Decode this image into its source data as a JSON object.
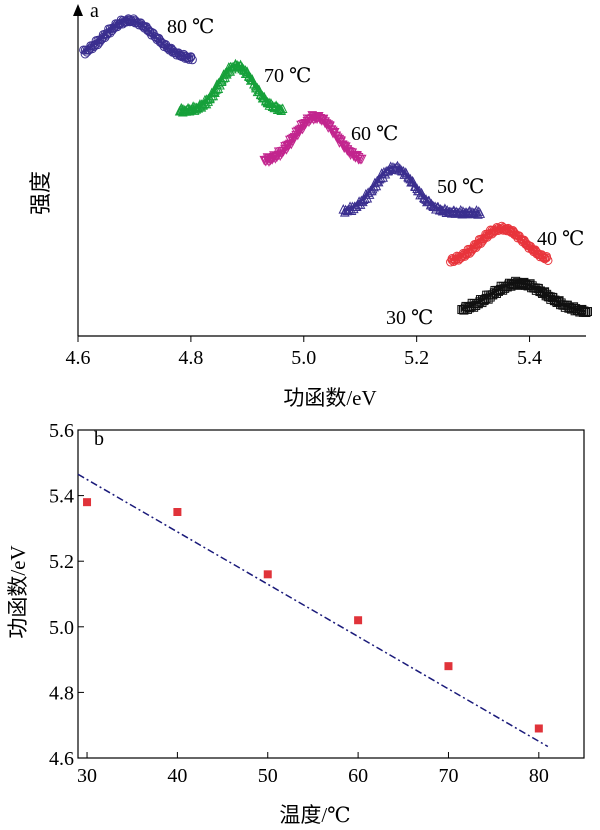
{
  "chart_data": [
    {
      "panel": "a",
      "type": "line",
      "title": "",
      "xlabel": "功函数/eV",
      "ylabel": "强度",
      "xlim": [
        4.6,
        5.5
      ],
      "xticks": [
        4.6,
        4.8,
        5.0,
        5.2,
        5.4
      ],
      "xtick_labels": [
        "4.6",
        "4.8",
        "5.0",
        "5.2",
        "5.4"
      ],
      "y_ticks_shown": false,
      "series": [
        {
          "name": "80 ℃",
          "color": "#3b2f8f",
          "marker": "circle",
          "peak_x": 4.69,
          "x_range": [
            4.61,
            4.8
          ],
          "offset_level": 6
        },
        {
          "name": "70 ℃",
          "color": "#16a03a",
          "marker": "triangle-up",
          "peak_x": 4.88,
          "x_range": [
            4.78,
            4.96
          ],
          "offset_level": 5
        },
        {
          "name": "60 ℃",
          "color": "#c2258e",
          "marker": "triangle-down",
          "peak_x": 5.02,
          "x_range": [
            4.93,
            5.1
          ],
          "offset_level": 4
        },
        {
          "name": "50 ℃",
          "color": "#3b2f8f",
          "marker": "triangle-up",
          "peak_x": 5.16,
          "x_range": [
            5.07,
            5.31
          ],
          "offset_level": 3
        },
        {
          "name": "40 ℃",
          "color": "#e8353c",
          "marker": "circle",
          "peak_x": 5.35,
          "x_range": [
            5.26,
            5.43
          ],
          "offset_level": 2
        },
        {
          "name": "30 ℃",
          "color": "#111111",
          "marker": "square",
          "peak_x": 5.38,
          "x_range": [
            5.28,
            5.5
          ],
          "offset_level": 1
        }
      ]
    },
    {
      "panel": "b",
      "type": "scatter",
      "title": "",
      "xlabel": "温度/℃",
      "ylabel": "功函数/eV",
      "xlim": [
        29,
        85
      ],
      "ylim": [
        4.6,
        5.6
      ],
      "xticks": [
        30,
        40,
        50,
        60,
        70,
        80
      ],
      "xtick_labels": [
        "30",
        "40",
        "50",
        "60",
        "70",
        "80"
      ],
      "yticks": [
        4.6,
        4.8,
        5.0,
        5.2,
        5.4,
        5.6
      ],
      "ytick_labels": [
        "4.6",
        "4.8",
        "5.0",
        "5.2",
        "5.4",
        "5.6"
      ],
      "points": {
        "x": [
          30,
          40,
          50,
          60,
          70,
          80
        ],
        "y": [
          5.38,
          5.35,
          5.16,
          5.02,
          4.88,
          4.69
        ],
        "color": "#e0333a",
        "marker": "square"
      },
      "fit_line": {
        "x": [
          29,
          81
        ],
        "y": [
          5.465,
          4.635
        ],
        "color": "#1a1a7a",
        "style": "dash-dot"
      }
    }
  ]
}
